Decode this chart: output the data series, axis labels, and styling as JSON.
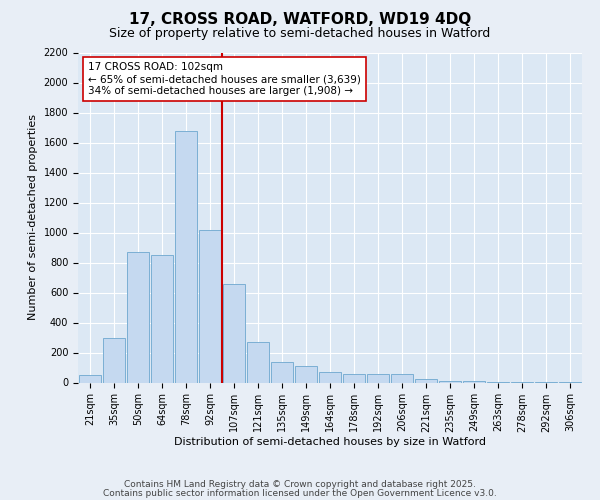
{
  "title_line1": "17, CROSS ROAD, WATFORD, WD19 4DQ",
  "title_line2": "Size of property relative to semi-detached houses in Watford",
  "xlabel": "Distribution of semi-detached houses by size in Watford",
  "ylabel": "Number of semi-detached properties",
  "categories": [
    "21sqm",
    "35sqm",
    "50sqm",
    "64sqm",
    "78sqm",
    "92sqm",
    "107sqm",
    "121sqm",
    "135sqm",
    "149sqm",
    "164sqm",
    "178sqm",
    "192sqm",
    "206sqm",
    "221sqm",
    "235sqm",
    "249sqm",
    "263sqm",
    "278sqm",
    "292sqm",
    "306sqm"
  ],
  "bar_values": [
    50,
    300,
    870,
    850,
    1680,
    1020,
    660,
    270,
    140,
    110,
    70,
    60,
    60,
    55,
    25,
    10,
    10,
    5,
    5,
    2,
    5
  ],
  "bar_color": "#c5d9f0",
  "bar_edge_color": "#7bafd4",
  "red_line_index": 6,
  "red_line_color": "#cc0000",
  "annotation_text": "17 CROSS ROAD: 102sqm\n← 65% of semi-detached houses are smaller (3,639)\n34% of semi-detached houses are larger (1,908) →",
  "annotation_box_facecolor": "#ffffff",
  "annotation_box_edgecolor": "#cc0000",
  "ylim": [
    0,
    2200
  ],
  "yticks": [
    0,
    200,
    400,
    600,
    800,
    1000,
    1200,
    1400,
    1600,
    1800,
    2000,
    2200
  ],
  "background_color": "#e8eef6",
  "plot_background": "#dce8f4",
  "footer_line1": "Contains HM Land Registry data © Crown copyright and database right 2025.",
  "footer_line2": "Contains public sector information licensed under the Open Government Licence v3.0.",
  "title_fontsize": 11,
  "subtitle_fontsize": 9,
  "axis_label_fontsize": 8,
  "tick_fontsize": 7,
  "annotation_fontsize": 7.5,
  "footer_fontsize": 6.5
}
